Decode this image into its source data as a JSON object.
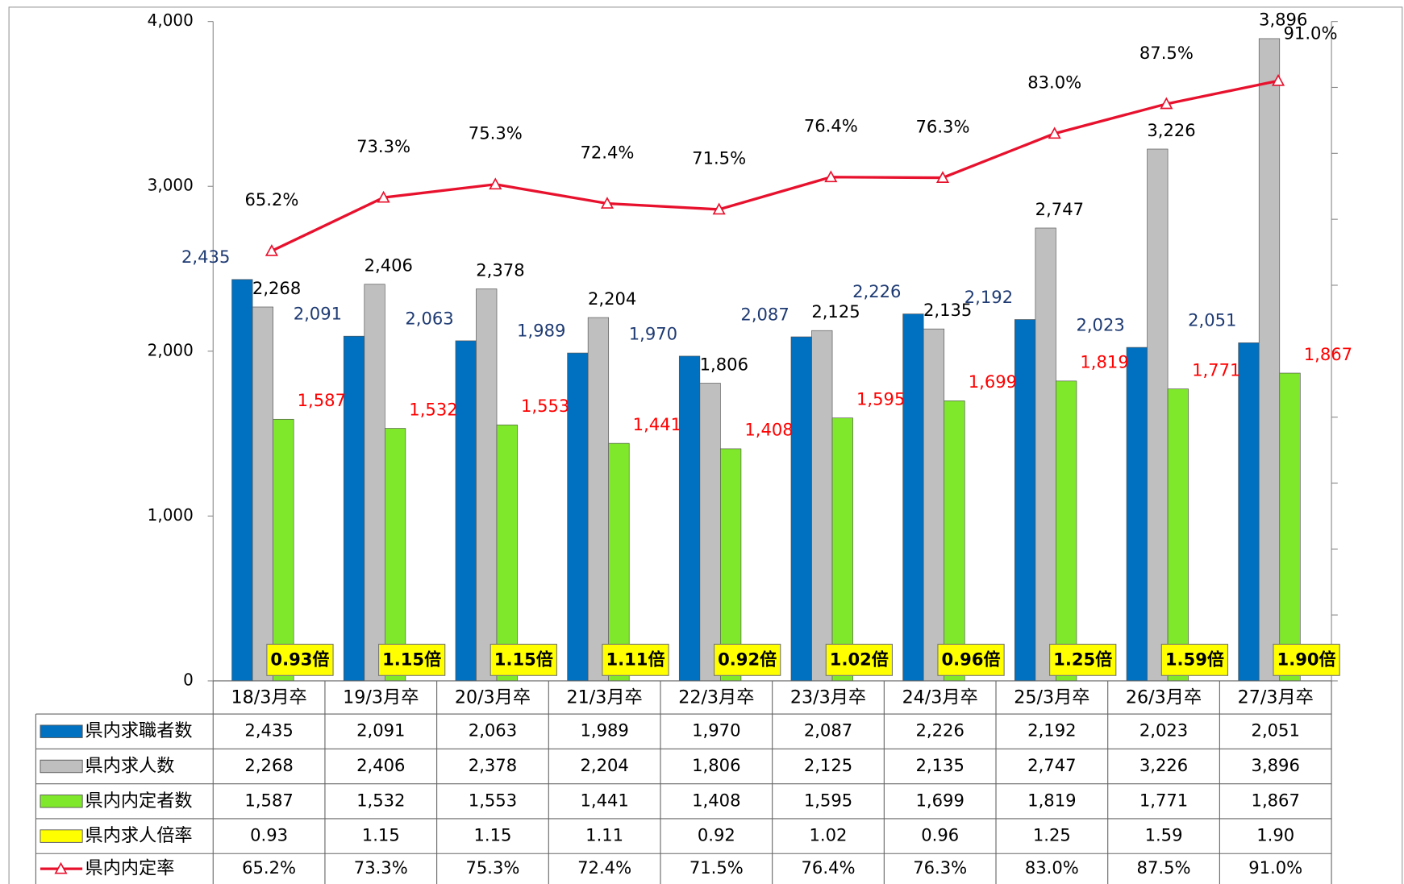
{
  "chart_data": {
    "type": "bar",
    "categories": [
      "18/3月卒",
      "19/3月卒",
      "20/3月卒",
      "21/3月卒",
      "22/3月卒",
      "23/3月卒",
      "24/3月卒",
      "25/3月卒",
      "26/3月卒",
      "27/3月卒"
    ],
    "ylim": [
      0,
      4000
    ],
    "yticks": [
      0,
      {
        "value": 1000,
        "label": "1,000"
      },
      {
        "value": 2000,
        "label": "2,000"
      },
      {
        "value": 3000,
        "label": "3,000"
      },
      {
        "value": 4000,
        "label": "4,000"
      }
    ],
    "y2lim": [
      0,
      100
    ],
    "y2ticks": [
      0,
      10,
      20,
      30,
      40,
      50,
      60,
      70,
      80,
      90,
      100
    ],
    "series": [
      {
        "name": "県内求職者数",
        "type": "bar",
        "color": "#0070c0",
        "label_color": "#1f3b73",
        "values": [
          2435,
          2091,
          2063,
          1989,
          1970,
          2087,
          2226,
          2192,
          2023,
          2051
        ],
        "value_labels": [
          "2,435",
          "2,091",
          "2,063",
          "1,989",
          "1,970",
          "2,087",
          "2,226",
          "2,192",
          "2,023",
          "2,051"
        ]
      },
      {
        "name": "県内求人数",
        "type": "bar",
        "color": "#bfbfbf",
        "label_color": "#000000",
        "values": [
          2268,
          2406,
          2378,
          2204,
          1806,
          2125,
          2135,
          2747,
          3226,
          3896
        ],
        "value_labels": [
          "2,268",
          "2,406",
          "2,378",
          "2,204",
          "1,806",
          "2,125",
          "2,135",
          "2,747",
          "3,226",
          "3,896"
        ]
      },
      {
        "name": "県内内定者数",
        "type": "bar",
        "color": "#7fe82a",
        "label_color": "#ff0000",
        "values": [
          1587,
          1532,
          1553,
          1441,
          1408,
          1595,
          1699,
          1819,
          1771,
          1867
        ],
        "value_labels": [
          "1,587",
          "1,532",
          "1,553",
          "1,441",
          "1,408",
          "1,595",
          "1,699",
          "1,819",
          "1,771",
          "1,867"
        ]
      },
      {
        "name": "県内求人倍率",
        "type": "label-box",
        "color": "#ffff00",
        "values": [
          0.93,
          1.15,
          1.15,
          1.11,
          0.92,
          1.02,
          0.96,
          1.25,
          1.59,
          1.9
        ],
        "value_labels": [
          "0.93倍",
          "1.15倍",
          "1.15倍",
          "1.11倍",
          "0.92倍",
          "1.02倍",
          "0.96倍",
          "1.25倍",
          "1.59倍",
          "1.90倍"
        ]
      },
      {
        "name": "県内内定率",
        "type": "line",
        "axis": "y2",
        "color": "#e8112d",
        "values": [
          65.2,
          73.3,
          75.3,
          72.4,
          71.5,
          76.4,
          76.3,
          83.0,
          87.5,
          91.0
        ],
        "value_labels": [
          "65.2%",
          "73.3%",
          "75.3%",
          "72.4%",
          "71.5%",
          "76.4%",
          "76.3%",
          "83.0%",
          "87.5%",
          "91.0%"
        ]
      }
    ]
  }
}
